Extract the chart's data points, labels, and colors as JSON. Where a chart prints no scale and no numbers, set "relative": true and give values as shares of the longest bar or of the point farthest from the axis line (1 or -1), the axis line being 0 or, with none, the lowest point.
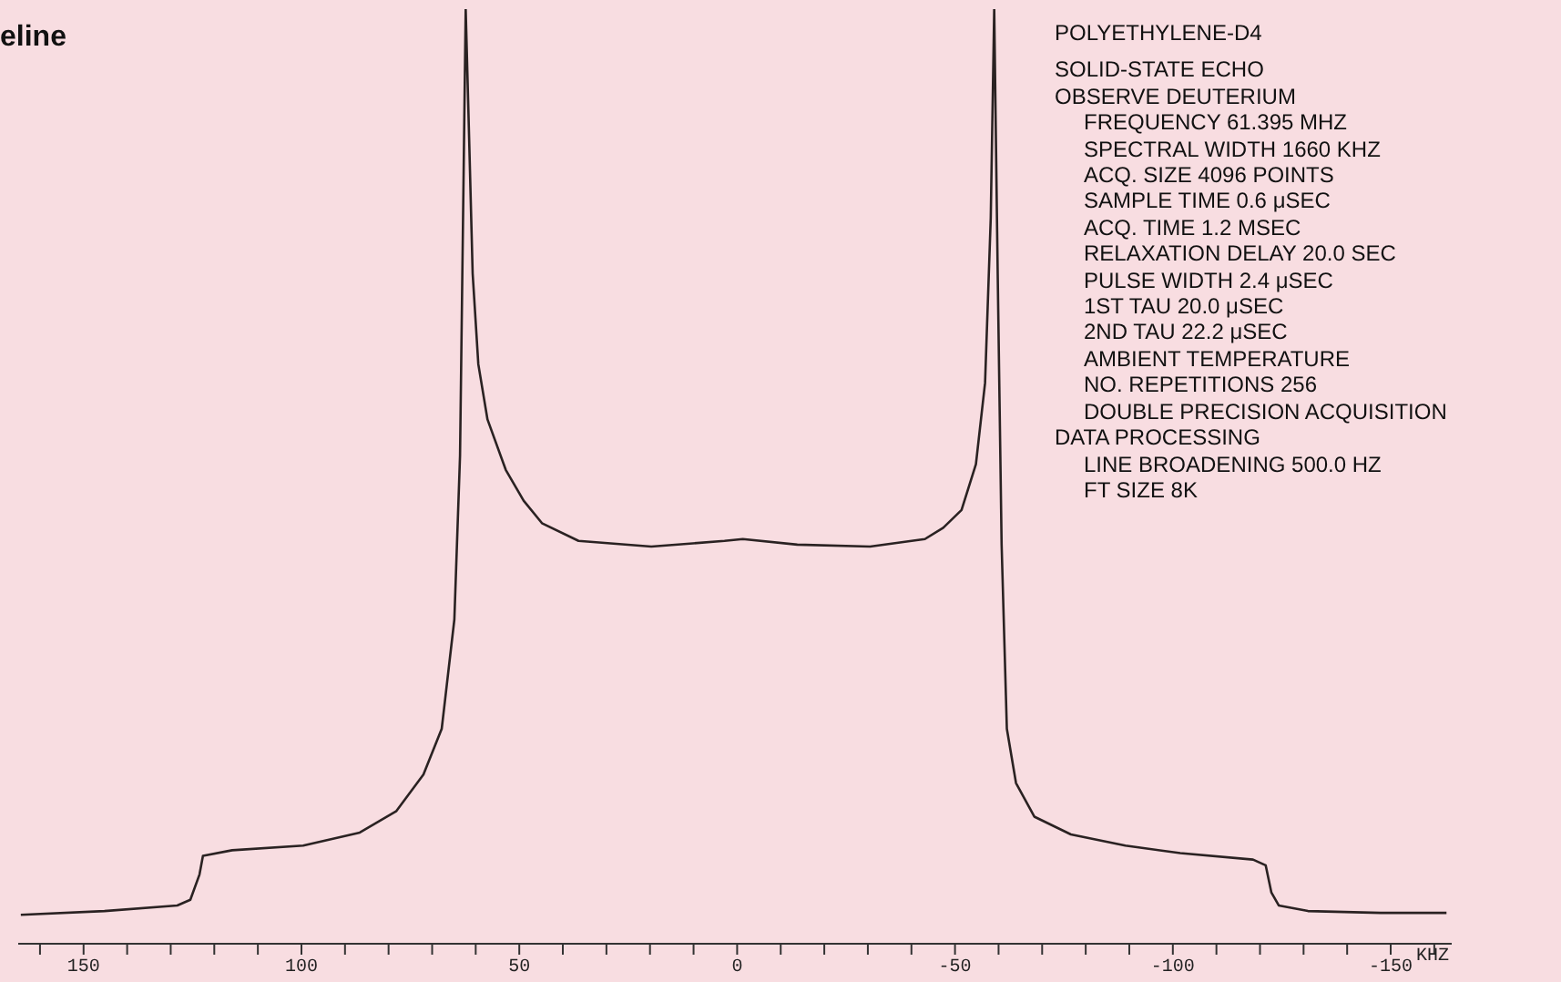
{
  "chart_data": {
    "type": "line",
    "title": "eline",
    "xlabel": "KHZ",
    "relative": true,
    "x": [
      164.4,
      145.2,
      128.5,
      125.5,
      123.4,
      122.6,
      115.9,
      99.6,
      86.6,
      78.2,
      72.0,
      67.8,
      64.9,
      63.6,
      62.8,
      62.3,
      61.5,
      60.7,
      59.4,
      57.3,
      53.1,
      49.0,
      44.8,
      36.4,
      19.7,
      2.9,
      -1.3,
      -13.8,
      -30.5,
      -43.1,
      -47.3,
      -51.5,
      -54.8,
      -56.9,
      -58.2,
      -59.0,
      -59.8,
      -60.7,
      -61.9,
      -64.0,
      -68.2,
      -76.6,
      -89.1,
      -101.7,
      -118.4,
      -121.3,
      -122.6,
      -124.3,
      -131.0,
      -147.7,
      -162.8
    ],
    "series": [
      {
        "color": "#2a2222",
        "values": [
          0.031,
          0.035,
          0.041,
          0.047,
          0.074,
          0.094,
          0.1,
          0.105,
          0.119,
          0.142,
          0.181,
          0.23,
          0.347,
          0.522,
          0.815,
          1.0,
          0.86,
          0.717,
          0.62,
          0.561,
          0.507,
          0.474,
          0.45,
          0.431,
          0.425,
          0.431,
          0.433,
          0.427,
          0.425,
          0.433,
          0.445,
          0.464,
          0.513,
          0.6,
          0.776,
          1.0,
          0.717,
          0.427,
          0.23,
          0.172,
          0.136,
          0.117,
          0.105,
          0.097,
          0.09,
          0.084,
          0.055,
          0.041,
          0.035,
          0.033,
          0.033
        ]
      }
    ],
    "xlim": [
      165,
      -164
    ],
    "xticks": [
      {
        "value": 160,
        "label": null
      },
      150,
      {
        "value": 140,
        "label": null
      },
      {
        "value": 130,
        "label": null
      },
      {
        "value": 120,
        "label": null
      },
      {
        "value": 110,
        "label": null
      },
      100,
      {
        "value": 90,
        "label": null
      },
      {
        "value": 80,
        "label": null
      },
      {
        "value": 70,
        "label": null
      },
      {
        "value": 60,
        "label": null
      },
      50,
      {
        "value": 40,
        "label": null
      },
      {
        "value": 30,
        "label": null
      },
      {
        "value": 20,
        "label": null
      },
      {
        "value": 10,
        "label": null
      },
      0,
      {
        "value": -10,
        "label": null
      },
      {
        "value": -20,
        "label": null
      },
      {
        "value": -30,
        "label": null
      },
      {
        "value": -40,
        "label": null
      },
      -50,
      {
        "value": -60,
        "label": null
      },
      {
        "value": -70,
        "label": null
      },
      {
        "value": -80,
        "label": null
      },
      {
        "value": -90,
        "label": null
      },
      -100,
      {
        "value": -110,
        "label": null
      },
      {
        "value": -120,
        "label": null
      },
      {
        "value": -130,
        "label": null
      },
      {
        "value": -140,
        "label": null
      },
      -150,
      {
        "value": -160,
        "label": null
      }
    ],
    "marker": "none",
    "line_style": "solid",
    "annotations": [
      "POLYETHYLENE-D4",
      "SOLID-STATE ECHO",
      "OBSERVE DEUTERIUM",
      "FREQUENCY 61.395 MHZ",
      "SPECTRAL WIDTH 1660 KHZ",
      "ACQ. SIZE 4096 POINTS",
      "SAMPLE TIME 0.6 μSEC",
      "ACQ. TIME 1.2 MSEC",
      "RELAXATION DELAY 20.0 SEC",
      "PULSE WIDTH 2.4 μSEC",
      "1ST TAU 20.0 μSEC",
      "2ND TAU 22.2 μSEC",
      "AMBIENT TEMPERATURE",
      "NO. REPETITIONS 256",
      "DOUBLE PRECISION ACQUISITION",
      "DATA PROCESSING",
      "LINE BROADENING 500.0 HZ",
      "FT SIZE 8K"
    ]
  }
}
